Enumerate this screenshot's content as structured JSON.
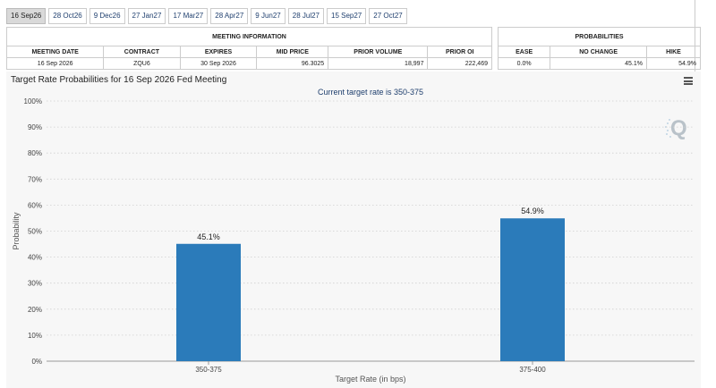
{
  "tabs": [
    "16 Sep26",
    "28 Oct26",
    "9 Dec26",
    "27 Jan27",
    "17 Mar27",
    "28 Apr27",
    "9 Jun27",
    "28 Jul27",
    "15 Sep27",
    "27 Oct27"
  ],
  "active_tab": 0,
  "meeting_info": {
    "title": "MEETING INFORMATION",
    "headers": [
      "MEETING DATE",
      "CONTRACT",
      "EXPIRES",
      "MID PRICE",
      "PRIOR VOLUME",
      "PRIOR OI"
    ],
    "values": [
      "16 Sep 2026",
      "ZQU6",
      "30 Sep 2026",
      "96.3025",
      "18,997",
      "222,469"
    ]
  },
  "probabilities": {
    "title": "PROBABILITIES",
    "headers": [
      "EASE",
      "NO CHANGE",
      "HIKE"
    ],
    "values": [
      "0.0%",
      "45.1%",
      "54.9%"
    ]
  },
  "colors": {
    "bar": "#2b7bba",
    "chart_bg": "#f7f7f7",
    "tab_active": "#d9d9d9",
    "subtitle": "#1f3f6e"
  },
  "chart_data": {
    "type": "bar",
    "title": "Target Rate Probabilities for 16 Sep 2026 Fed Meeting",
    "subtitle": "Current target rate is 350-375",
    "xlabel": "Target Rate (in bps)",
    "ylabel": "Probability",
    "categories": [
      "350-375",
      "375-400"
    ],
    "values": [
      45.1,
      54.9
    ],
    "data_labels": [
      "45.1%",
      "54.9%"
    ],
    "ylim": [
      0,
      100
    ],
    "yticks": [
      "0%",
      "10%",
      "20%",
      "30%",
      "40%",
      "50%",
      "60%",
      "70%",
      "80%",
      "90%",
      "100%"
    ],
    "grid": true,
    "legend": "none"
  }
}
